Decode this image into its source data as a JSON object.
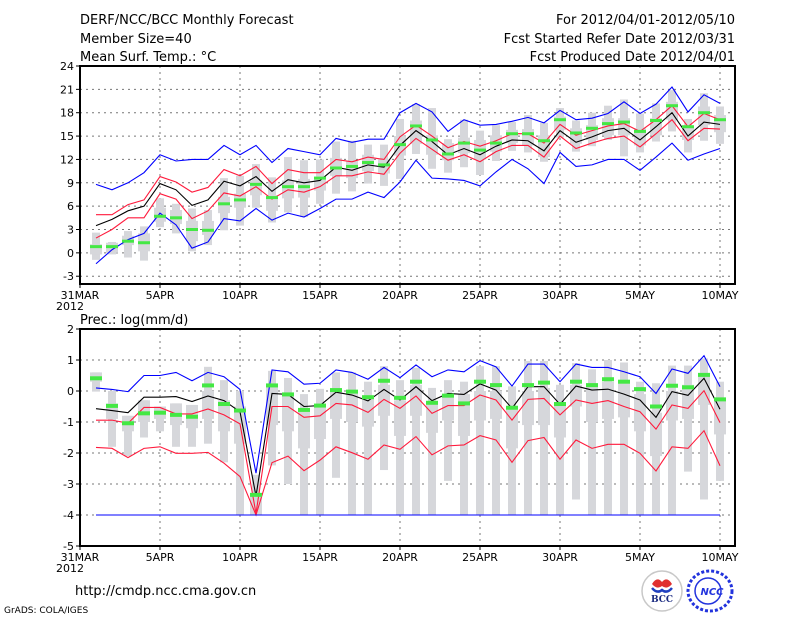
{
  "header": {
    "title": "DERF/NCC/BCC Monthly Forecast",
    "member_size": "Member Size=40",
    "variable_top": "Mean Surf. Temp.: °C",
    "period": "For 2012/04/01-2012/05/10",
    "started": "Fcst Started Refer Date 2012/03/31",
    "produced": "Fcst Produced Date 2012/04/01"
  },
  "footer": {
    "url": "http://cmdp.ncc.cma.gov.cn",
    "credit": "GrADS: COLA/IGES",
    "logo_bcc": "BCC",
    "logo_ncc": "NCC"
  },
  "colors": {
    "max_min": "#0000ff",
    "spread": "#ff1a3c",
    "mean": "#000000",
    "obs": "#44e844",
    "box": "#d6d7db"
  },
  "x_ticks": [
    {
      "day": 0,
      "label": "31MAR",
      "sub": "2012"
    },
    {
      "day": 5,
      "label": "5APR"
    },
    {
      "day": 10,
      "label": "10APR"
    },
    {
      "day": 15,
      "label": "15APR"
    },
    {
      "day": 20,
      "label": "20APR"
    },
    {
      "day": 25,
      "label": "25APR"
    },
    {
      "day": 30,
      "label": "30APR"
    },
    {
      "day": 35,
      "label": "5MAY"
    },
    {
      "day": 40,
      "label": "10MAY"
    }
  ],
  "chart_data": [
    {
      "type": "line",
      "title": "Mean Surf. Temp.: °C",
      "xlabel": "",
      "ylabel": "",
      "xlim": [
        0,
        41
      ],
      "ylim": [
        -4,
        24
      ],
      "yticks": [
        -3,
        0,
        3,
        6,
        9,
        12,
        15,
        18,
        21,
        24
      ],
      "grid": true,
      "days_start": 1,
      "series": [
        {
          "name": "max",
          "color": "#0000ff",
          "values": [
            8.8,
            8.1,
            9,
            10.3,
            12.6,
            11.8,
            12,
            12,
            13.8,
            12.6,
            13.8,
            11.6,
            13.4,
            13,
            12.6,
            14.7,
            14.2,
            14.6,
            14.6,
            18,
            19.2,
            18.1,
            15.6,
            17.1,
            16.4,
            16.5,
            16.9,
            17.4,
            16.7,
            18.3,
            17.1,
            17.3,
            17.9,
            19.4,
            17.9,
            19.1,
            21.3,
            18.1,
            20.3,
            19.2
          ]
        },
        {
          "name": "upper",
          "color": "#ff1a3c",
          "values": [
            4.9,
            4.9,
            6.2,
            6.8,
            9.8,
            9.1,
            7.8,
            8.4,
            10.7,
            9.9,
            11.1,
            8.9,
            10.7,
            10.3,
            10.3,
            12,
            11.7,
            12.3,
            12,
            14.9,
            16.4,
            15,
            13.5,
            14.3,
            13.7,
            14.4,
            15.3,
            15.3,
            14.1,
            16.5,
            15.1,
            15.7,
            16.3,
            16.6,
            15.6,
            17.1,
            18.9,
            16.2,
            17.9,
            17.1
          ]
        },
        {
          "name": "mean",
          "color": "#000000",
          "values": [
            3.5,
            4.3,
            5.4,
            6,
            8.9,
            8.1,
            6.1,
            6.8,
            9.2,
            8.6,
            9.8,
            7.9,
            9.4,
            9,
            9.3,
            11,
            10.6,
            11.3,
            11,
            13.8,
            15.7,
            14.3,
            12.6,
            13.4,
            12.6,
            13.7,
            14.5,
            14.4,
            13.1,
            15.7,
            14.2,
            14.9,
            15.7,
            16,
            14.5,
            16.2,
            18,
            15,
            16.8,
            16.5
          ]
        },
        {
          "name": "lower",
          "color": "#ff1a3c",
          "values": [
            1.9,
            3,
            4.5,
            4.5,
            7.6,
            6.9,
            4.4,
            5.4,
            7.7,
            7.3,
            8.5,
            6.9,
            8.1,
            7.8,
            8.5,
            9.9,
            9.9,
            10.4,
            10.1,
            12.8,
            14.7,
            13.3,
            11.9,
            12.6,
            11.7,
            13,
            13.8,
            13.8,
            12.3,
            15,
            13.4,
            14.1,
            14.7,
            15,
            13.6,
            15.3,
            17.1,
            14.4,
            16,
            15.9
          ]
        },
        {
          "name": "min",
          "color": "#0000ff",
          "values": [
            -1.4,
            0.4,
            1.7,
            2.5,
            5.1,
            3.6,
            0.6,
            1.4,
            4.4,
            4.1,
            5.7,
            4.2,
            5.1,
            4.6,
            5.7,
            6.9,
            6.9,
            7.8,
            7.1,
            9.1,
            11.9,
            9.6,
            9.5,
            9.3,
            8.6,
            10.4,
            12,
            10.8,
            8.9,
            12.9,
            11.1,
            11.3,
            12,
            12,
            10.6,
            12.3,
            14.1,
            11.9,
            12.7,
            13.4
          ]
        },
        {
          "name": "observed",
          "color": "#44e844",
          "values": [
            0.8,
            0.8,
            1.5,
            1.3,
            4.7,
            4.5,
            3,
            2.9,
            6.3,
            6.8,
            8.8,
            7.1,
            8.5,
            8.5,
            9.6,
            10.9,
            11.1,
            11.6,
            11.3,
            13.9,
            16.3,
            14.5,
            12.7,
            14.1,
            13.2,
            14.1,
            15.3,
            15.3,
            14.4,
            17.1,
            15.4,
            16,
            16.6,
            16.8,
            15.6,
            17,
            18.9,
            16.2,
            18,
            17.1
          ]
        }
      ],
      "boxes": [
        [
          -0.9,
          -0.2,
          1.1,
          2.6
        ],
        [
          -0.2,
          0,
          1.3,
          1.4
        ],
        [
          -0.6,
          1,
          2.2,
          2.8
        ],
        [
          -1,
          0.2,
          2.5,
          3.4
        ],
        [
          3.3,
          4,
          5.8,
          7
        ],
        [
          2.5,
          3.7,
          5.5,
          6.3
        ],
        [
          0.2,
          1.5,
          4.1,
          5.7
        ],
        [
          1,
          2.3,
          4.1,
          5.5
        ],
        [
          2.9,
          5.1,
          7.2,
          9.6
        ],
        [
          3.5,
          5.8,
          7.6,
          9.9
        ],
        [
          5.8,
          7.4,
          9.3,
          11.4
        ],
        [
          3.9,
          5.4,
          7.4,
          9.7
        ],
        [
          5.2,
          7,
          9.3,
          12.3
        ],
        [
          4.6,
          7.1,
          9.5,
          11.9
        ],
        [
          6.3,
          8,
          9.8,
          12
        ],
        [
          7.6,
          9.9,
          12.2,
          14.3
        ],
        [
          7.9,
          9.6,
          11.8,
          14.4
        ],
        [
          8.9,
          10.5,
          12.6,
          13.9
        ],
        [
          8.6,
          10.2,
          12,
          13.9
        ],
        [
          9.5,
          12.5,
          15,
          17.2
        ],
        [
          12.7,
          14,
          17,
          19.1
        ],
        [
          10.8,
          12.6,
          15.1,
          18.6
        ],
        [
          10.3,
          11.9,
          14.1,
          14.6
        ],
        [
          11,
          12.8,
          14.8,
          17.1
        ],
        [
          10,
          12,
          14.5,
          15.7
        ],
        [
          11.8,
          13,
          15.1,
          16.4
        ],
        [
          13.1,
          14.1,
          15.8,
          16.8
        ],
        [
          12.9,
          13.8,
          15.9,
          17.7
        ],
        [
          11.7,
          12.3,
          15.1,
          16.7
        ],
        [
          14.8,
          15.8,
          17.5,
          18.6
        ],
        [
          13,
          14,
          16,
          17
        ],
        [
          13.7,
          14.5,
          16.4,
          18
        ],
        [
          14.5,
          15.1,
          17.3,
          18.9
        ],
        [
          12.4,
          15.1,
          17.3,
          19.7
        ],
        [
          12.9,
          13.8,
          16,
          17.9
        ],
        [
          14.3,
          15.1,
          17.3,
          19.2
        ],
        [
          15.6,
          17.1,
          19.4,
          20.9
        ],
        [
          12.9,
          14.5,
          16.2,
          17.2
        ],
        [
          14.4,
          16.4,
          18.8,
          20.5
        ],
        [
          14,
          15.5,
          17.7,
          18.8
        ]
      ]
    },
    {
      "type": "line",
      "title": "Prec.: log(mm/d)",
      "xlabel": "",
      "ylabel": "",
      "xlim": [
        0,
        41
      ],
      "ylim": [
        -5,
        2
      ],
      "yticks": [
        -5,
        -4,
        -3,
        -2,
        -1,
        0,
        1,
        2
      ],
      "grid": true,
      "days_start": 1,
      "series": [
        {
          "name": "max",
          "color": "#0000ff",
          "values": [
            0.1,
            0.05,
            -0.02,
            0.5,
            0.5,
            0.6,
            0.33,
            0.6,
            0.46,
            0.05,
            -2.65,
            0.68,
            0.62,
            0.22,
            0.25,
            0.68,
            0.6,
            0.38,
            0.76,
            0.43,
            0.84,
            0.46,
            0.68,
            0.62,
            0.98,
            0.78,
            0.16,
            0.87,
            0.87,
            0.3,
            0.87,
            0.76,
            0.76,
            0.62,
            0.46,
            -0.08,
            0.71,
            0.57,
            1.14,
            0.14
          ]
        },
        {
          "name": "upper",
          "color": "#ff1a3c",
          "values": [
            -0.94,
            -0.94,
            -1.04,
            -0.53,
            -0.53,
            -0.74,
            -0.74,
            -0.58,
            -0.77,
            -1.06,
            -3.95,
            -0.5,
            -0.5,
            -0.85,
            -0.8,
            -0.4,
            -0.45,
            -0.69,
            -0.27,
            -0.56,
            -0.16,
            -0.72,
            -0.47,
            -0.47,
            -0.13,
            -0.29,
            -0.94,
            -0.27,
            -0.24,
            -0.77,
            -0.29,
            -0.4,
            -0.31,
            -0.5,
            -0.67,
            -1.23,
            -0.45,
            -0.56,
            0.01,
            -1.02
          ]
        },
        {
          "name": "mean",
          "color": "#000000",
          "values": [
            -0.57,
            -0.63,
            -0.7,
            -0.2,
            -0.2,
            -0.18,
            -0.34,
            -0.16,
            -0.31,
            -0.67,
            -3.39,
            -0.08,
            -0.11,
            -0.5,
            -0.47,
            -0.04,
            -0.13,
            -0.32,
            0.05,
            -0.29,
            0.14,
            -0.31,
            -0.08,
            -0.11,
            0.23,
            0.03,
            -0.56,
            0.14,
            0.14,
            -0.43,
            0.16,
            0.03,
            0.06,
            -0.1,
            -0.29,
            -0.85,
            -0.02,
            -0.14,
            0.41,
            -0.59
          ]
        },
        {
          "name": "lower",
          "color": "#ff1a3c",
          "values": [
            -1.82,
            -1.85,
            -2.15,
            -1.85,
            -1.8,
            -2.01,
            -2.01,
            -1.98,
            -2.33,
            -2.76,
            -4,
            -2.31,
            -2.1,
            -2.57,
            -2.23,
            -1.8,
            -1.99,
            -2.2,
            -1.74,
            -1.88,
            -1.47,
            -2.06,
            -1.77,
            -1.74,
            -1.44,
            -1.58,
            -2.3,
            -1.6,
            -1.5,
            -2.2,
            -1.58,
            -1.85,
            -1.72,
            -1.72,
            -2.01,
            -2.58,
            -1.8,
            -1.85,
            -1.28,
            -2.41
          ]
        },
        {
          "name": "min",
          "color": "#0000ff",
          "values": [
            -4,
            -4,
            -4,
            -4,
            -4,
            -4,
            -4,
            -4,
            -4,
            -4,
            -4,
            -4,
            -4,
            -4,
            -4,
            -4,
            -4,
            -4,
            -4,
            -4,
            -4,
            -4,
            -4,
            -4,
            -4,
            -4,
            -4,
            -4,
            -4,
            -4,
            -4,
            -4,
            -4,
            -4,
            -4,
            -4,
            -4,
            -4,
            -4,
            -4
          ]
        },
        {
          "name": "observed",
          "color": "#44e844",
          "values": [
            0.41,
            -0.48,
            -1.04,
            -0.72,
            -0.7,
            -0.77,
            -0.83,
            0.18,
            -0.42,
            -0.63,
            -3.35,
            0.18,
            -0.11,
            -0.61,
            -0.47,
            0.03,
            -0.02,
            -0.2,
            0.33,
            -0.22,
            0.3,
            -0.38,
            -0.15,
            -0.4,
            0.3,
            0.19,
            -0.54,
            0.19,
            0.27,
            -0.42,
            0.3,
            0.19,
            0.38,
            0.3,
            0.06,
            -0.5,
            0.17,
            0.12,
            0.52,
            -0.27
          ]
        }
      ],
      "boxes": [
        [
          -0.02,
          0.3,
          0.6,
          0.6
        ],
        [
          -1.8,
          -0.9,
          -0.4,
          0
        ],
        [
          -2.1,
          -1.3,
          -0.8,
          -0.8
        ],
        [
          -1.5,
          -1,
          -0.3,
          -0.3
        ],
        [
          -1.3,
          -0.9,
          -0.5,
          -0.5
        ],
        [
          -1.8,
          -1.1,
          -0.4,
          -0.4
        ],
        [
          -1.8,
          -1.2,
          -0.45,
          -0.45
        ],
        [
          -1.7,
          -0.9,
          0,
          0.78
        ],
        [
          -2.3,
          -1.3,
          -0.3,
          0.35
        ],
        [
          -4,
          -1.7,
          -0.5,
          0
        ],
        [
          -4,
          -4,
          -3.3,
          -2.7
        ],
        [
          -2.4,
          -1.1,
          0.2,
          0.65
        ],
        [
          -3,
          -1.3,
          -0.1,
          0.42
        ],
        [
          -4,
          -1.85,
          -0.6,
          -0.1
        ],
        [
          -4,
          -1.55,
          -0.5,
          0.07
        ],
        [
          -2.8,
          -0.9,
          0,
          0.6
        ],
        [
          -4,
          -1,
          0,
          0.6
        ],
        [
          -4,
          -1.15,
          -0.2,
          0.3
        ],
        [
          -2.55,
          -0.8,
          0.2,
          0.8
        ],
        [
          -4,
          -1.45,
          -0.3,
          0.35
        ],
        [
          -4,
          -0.8,
          0.2,
          0.75
        ],
        [
          -4,
          -1.35,
          -0.35,
          0.1
        ],
        [
          -2.9,
          -0.95,
          -0.1,
          0.35
        ],
        [
          -4,
          -1.45,
          -0.1,
          0.3
        ],
        [
          -4,
          -0.95,
          0,
          0.8
        ],
        [
          -4,
          -0.9,
          0,
          0.8
        ],
        [
          -4,
          -1.85,
          -0.6,
          0.15
        ],
        [
          -4,
          -1.1,
          0,
          0.97
        ],
        [
          -4,
          -1.1,
          0.1,
          0.97
        ],
        [
          -4,
          -1.5,
          -0.4,
          0.2
        ],
        [
          -3.5,
          -0.5,
          0.2,
          0.9
        ],
        [
          -4,
          -1,
          0.2,
          0.7
        ],
        [
          -4,
          -0.9,
          0.3,
          1
        ],
        [
          -4,
          -0.85,
          0.25,
          0.92
        ],
        [
          -4,
          -1.3,
          -0.1,
          0.3
        ],
        [
          -4,
          -2.1,
          -0.7,
          0.25
        ],
        [
          -4,
          -0.95,
          0,
          0.82
        ],
        [
          -2.6,
          -0.9,
          0.2,
          0.82
        ],
        [
          -3.5,
          -0.45,
          0.5,
          1.05
        ],
        [
          -2.9,
          -1.4,
          -0.3,
          0.3
        ]
      ]
    }
  ]
}
